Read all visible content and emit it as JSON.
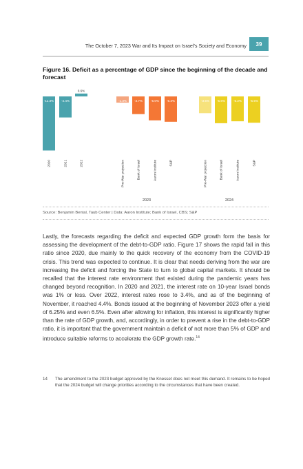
{
  "header": {
    "title": "The October 7, 2023 War and Its Impact on Israel’s Society and Economy",
    "page_number": "39"
  },
  "figure": {
    "title": "Figure 16. Deficit as a percentage of GDP since the beginning of the decade and forecast",
    "source": "Source: Benjamin Bental, Taub Center | Data: Aaron Institute; Bank of Israel, CBS; S&P"
  },
  "chart_data": {
    "type": "bar",
    "categories": [
      "2020",
      "2021",
      "2022",
      "Pre-War projection",
      "Bank of Israel",
      "Aaron Institute",
      "S&P",
      "Pre-War projection",
      "Bank of Israel",
      "Aaron Institute",
      "S&P"
    ],
    "groups": [
      "",
      "",
      "",
      "2023",
      "2023",
      "2023",
      "2023",
      "2024",
      "2024",
      "2024",
      "2024"
    ],
    "group_labels": [
      "2023",
      "2024"
    ],
    "values": [
      -11.3,
      -4.4,
      0.6,
      -1.3,
      -3.7,
      -5.0,
      -5.3,
      -3.5,
      -5.6,
      -5.2,
      -5.5
    ],
    "data_labels": [
      "-11.3%",
      "-4.4%",
      "0.6%",
      "-1.3%",
      "-3.7%",
      "-5.0%",
      "-5.3%",
      "-3.5%",
      "-5.6%",
      "-5.2%",
      "-5.5%"
    ],
    "colors": [
      "#4aa3ad",
      "#4aa3ad",
      "#4aa3ad",
      "#f4a57e",
      "#f47735",
      "#f47735",
      "#f47735",
      "#f6e27c",
      "#ecd021",
      "#ecd021",
      "#ecd021"
    ],
    "ylim": [
      -11.3,
      0.6
    ],
    "title": "",
    "xlabel": "",
    "ylabel": "",
    "grid": false,
    "legend": "none"
  },
  "body": {
    "paragraph": "Lastly, the forecasts regarding the deficit and expected GDP growth form the basis for assessing the development of the debt-to-GDP ratio. Figure 17 shows the rapid fall in this ratio since 2020, due mainly to the quick recovery of the economy from the COVID-19 crisis. This trend was expected to continue. It is clear that needs deriving from the war are increasing the deficit and forcing the State to turn to global capital markets. It should be recalled that the interest rate environment that existed during the pandemic years has changed beyond recognition. In 2020 and 2021, the interest rate on 10-year Israel bonds was 1% or less. Over 2022, interest rates rose to 3.4%, and as of the beginning of November, it reached 4.4%. Bonds issued at the beginning of November 2023 offer a yield of 6.25% and even 6.5%. Even after allowing for inflation, this interest is significantly higher than the rate of GDP growth, and, accordingly, in order to prevent a rise in the debt-to-GDP ratio, it is important that the government maintain a deficit of not more than 5% of GDP and introduce suitable reforms to accelerate the GDP growth rate.",
    "footnote_marker": "14"
  },
  "footnote": {
    "number": "14",
    "text": "The amendment to the 2023 budget approved by the Knesset does not meet this demand. It remains to be hoped that the 2024 budget will change priorities according to the circumstances that have been created."
  }
}
